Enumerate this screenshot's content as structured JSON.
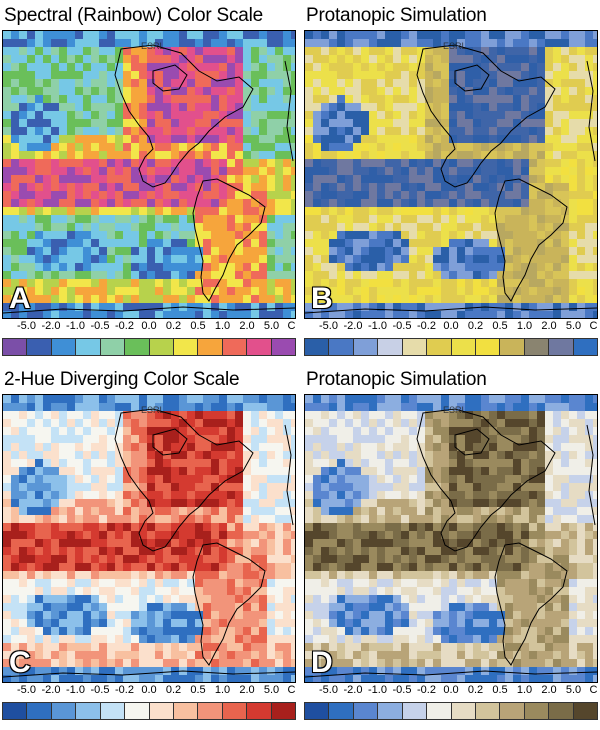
{
  "panels": [
    {
      "id": "A",
      "title": "Spectral (Rainbow) Color Scale",
      "letter": "A",
      "colors": [
        "#7b4fa8",
        "#3a5fb0",
        "#3f8fd6",
        "#76c8e6",
        "#8fd0a8",
        "#6abf5a",
        "#b7d24c",
        "#f2e64a",
        "#f6a53c",
        "#ef6a5a",
        "#e2508c",
        "#9a4bb0"
      ],
      "ocean": [
        "#8fd0a8",
        "#76c8e6",
        "#6abf5a"
      ],
      "land": [
        "#f6a53c",
        "#f2e64a",
        "#ef6a5a"
      ],
      "warm": [
        "#e2508c",
        "#ef6a5a",
        "#9a4bb0"
      ],
      "cool": [
        "#3f8fd6",
        "#3a5fb0",
        "#76c8e6"
      ],
      "yellow": [
        "#f2e64a",
        "#b7d24c",
        "#f6a53c"
      ]
    },
    {
      "id": "B",
      "title": "Protanopic Simulation",
      "letter": "B",
      "colors": [
        "#2a5fa8",
        "#4a78c4",
        "#7f9fd8",
        "#c8d0e6",
        "#e6dcaa",
        "#e0cc50",
        "#ece04a",
        "#f2e040",
        "#c9b45a",
        "#8a8470",
        "#6f78a0",
        "#2f6fc0"
      ],
      "ocean": [
        "#e6dcaa",
        "#e0cc50",
        "#ece04a"
      ],
      "land": [
        "#c9b45a",
        "#b8a860",
        "#d8c458"
      ],
      "warm": [
        "#3f65a8",
        "#6f78a0",
        "#2f5fa8"
      ],
      "cool": [
        "#4a78c4",
        "#7f9fd8",
        "#2a5fa8"
      ],
      "yellow": [
        "#f2e040",
        "#e0cc50",
        "#ece04a"
      ]
    },
    {
      "id": "C",
      "title": "2-Hue Diverging Color Scale",
      "letter": "C",
      "colors": [
        "#1f4fa0",
        "#2f6fc0",
        "#5a96d6",
        "#8cc0ea",
        "#c4e2f6",
        "#f6f6f0",
        "#fbe0cc",
        "#f8c0a0",
        "#f2947a",
        "#e8644e",
        "#d43a30",
        "#a8201c"
      ],
      "ocean": [
        "#fbe0cc",
        "#f6f6f0",
        "#c4e2f6"
      ],
      "land": [
        "#f2947a",
        "#f8c0a0",
        "#e8644e"
      ],
      "warm": [
        "#d43a30",
        "#e8644e",
        "#a8201c"
      ],
      "cool": [
        "#2f6fc0",
        "#5a96d6",
        "#8cc0ea"
      ],
      "yellow": [
        "#f8c0a0",
        "#fbe0cc",
        "#f2947a"
      ]
    },
    {
      "id": "D",
      "title": "Protanopic Simulation",
      "letter": "D",
      "colors": [
        "#1f4fa0",
        "#2f6fc0",
        "#5a86d0",
        "#8caee0",
        "#c6d2ea",
        "#f0efe8",
        "#e6dcc4",
        "#d2c49c",
        "#b8a478",
        "#9a8a5e",
        "#7a6c48",
        "#55462c"
      ],
      "ocean": [
        "#e6dcc4",
        "#f0efe8",
        "#c6d2ea"
      ],
      "land": [
        "#b8a478",
        "#d2c49c",
        "#9a8a5e"
      ],
      "warm": [
        "#7a6c48",
        "#9a8a5e",
        "#55462c"
      ],
      "cool": [
        "#2f6fc0",
        "#5a86d0",
        "#8caee0"
      ],
      "yellow": [
        "#d2c49c",
        "#e6dcc4",
        "#b8a478"
      ]
    }
  ],
  "ticks": [
    "-5.0",
    "-2.0",
    "-1.0",
    "-0.5",
    "-0.2",
    "0.0",
    "0.2",
    "0.5",
    "1.0",
    "2.0",
    "5.0"
  ],
  "unit": "C",
  "watermark": "ESRL"
}
